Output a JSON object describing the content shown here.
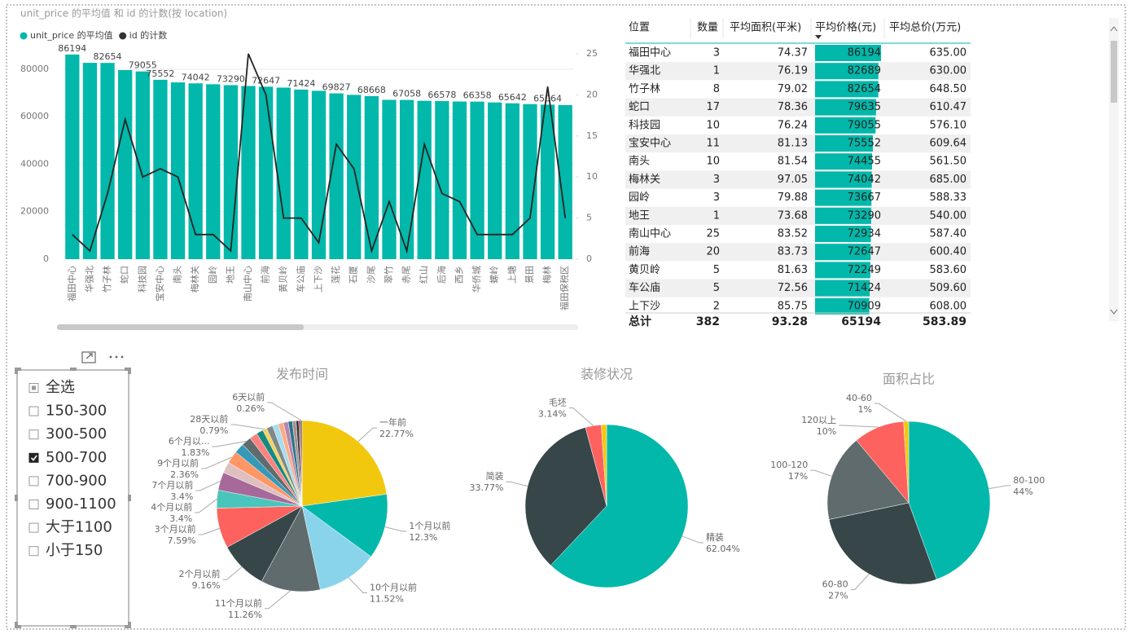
{
  "chart_data": [
    {
      "type": "combo",
      "title": "unit_price 的平均值 和 id 的计数(按 location)",
      "categories": [
        "福田中心",
        "华强北",
        "竹子林",
        "蛇口",
        "科技园",
        "宝安中心",
        "南头",
        "梅林关",
        "园岭",
        "地王",
        "南山中心",
        "前海",
        "黄贝岭",
        "车公庙",
        "上下沙",
        "莲花",
        "石厦",
        "沙尾",
        "翠竹",
        "赤尾",
        "红山",
        "后海",
        "西乡",
        "华侨城",
        "螺岭",
        "上塘",
        "景田",
        "梅林",
        "福田保税区"
      ],
      "series": [
        {
          "name": "unit_price 的平均值",
          "type": "bar",
          "color": "#01B8AA",
          "values": [
            86194,
            82689,
            82654,
            79635,
            79055,
            75552,
            74455,
            74042,
            73667,
            73290,
            72934,
            72647,
            72249,
            71424,
            70909,
            69827,
            69200,
            68668,
            67100,
            67058,
            66700,
            66578,
            66400,
            66358,
            66000,
            65642,
            65300,
            65064,
            64900
          ],
          "value_labels": [
            86194,
            null,
            82654,
            null,
            79055,
            75552,
            null,
            74042,
            null,
            73290,
            null,
            72647,
            null,
            71424,
            null,
            69827,
            null,
            68668,
            null,
            67058,
            null,
            66578,
            null,
            66358,
            null,
            65642,
            null,
            65064,
            null
          ]
        },
        {
          "name": "id 的计数",
          "type": "line",
          "color": "#252423",
          "axis": "y2",
          "values": [
            3,
            1,
            8,
            17,
            10,
            11,
            10,
            3,
            3,
            1,
            25,
            20,
            5,
            5,
            2,
            14,
            11,
            1,
            7,
            1,
            14,
            8,
            7,
            3,
            3,
            3,
            5,
            21,
            5
          ]
        }
      ],
      "ylim": [
        0,
        86500
      ],
      "yticks": [
        0,
        20000,
        40000,
        60000,
        80000
      ],
      "y2lim": [
        0,
        25
      ],
      "y2ticks": [
        0,
        5,
        10,
        15,
        20,
        25
      ],
      "grid": true
    },
    {
      "type": "pie",
      "title": "发布时间",
      "categories": [
        "一年前",
        "1个月以前",
        "10个月以前",
        "11个月以前",
        "2个月以前",
        "3个月以前",
        "4个月以前",
        "7个月以前",
        null,
        "9个月以前",
        null,
        "6个月以...",
        null,
        null,
        "28天以前",
        null,
        null,
        null,
        null,
        null,
        null,
        null,
        null,
        "6天以前"
      ],
      "values": [
        22.77,
        12.3,
        11.52,
        11.26,
        9.16,
        7.59,
        3.4,
        3.4,
        2.1,
        2.36,
        1.9,
        1.83,
        1.5,
        1.3,
        0.79,
        1.2,
        1.1,
        1.0,
        0.9,
        0.8,
        0.7,
        0.5,
        0.36,
        0.26
      ],
      "value_labels": [
        "22.77%",
        "12.3%",
        "11.52%",
        "11.26%",
        "9.16%",
        "7.59%",
        "3.4%",
        "3.4%",
        null,
        "2.36%",
        null,
        "1.83%",
        null,
        null,
        "0.79%",
        null,
        null,
        null,
        null,
        null,
        null,
        null,
        null,
        "0.26%"
      ],
      "colors": [
        "#F2C80F",
        "#01B8AA",
        "#8AD4EB",
        "#5F6B6D",
        "#374649",
        "#FD625E",
        "#4AC5BB",
        "#A66999",
        "#DFBFBF",
        "#FE9666",
        "#3599B8",
        "#5F6B6D",
        "#FB8281",
        "#168980",
        "#F4D25A",
        "#7F898A",
        "#A4DDEE",
        "#FDAB89",
        "#B687AC",
        "#28738A",
        "#A78F8F",
        "#293537",
        "#BB4A4A",
        "#475052"
      ]
    },
    {
      "type": "pie",
      "title": "装修状况",
      "categories": [
        "精装",
        "简装",
        "毛坯",
        null
      ],
      "values": [
        62.04,
        33.77,
        3.14,
        1.05
      ],
      "value_labels": [
        "62.04%",
        "33.77%",
        "3.14%",
        null
      ],
      "colors": [
        "#01B8AA",
        "#374649",
        "#FD625E",
        "#F2C80F"
      ]
    },
    {
      "type": "pie",
      "title": "面积占比",
      "categories": [
        "80-100",
        "60-80",
        "100-120",
        "120以上",
        "40-60"
      ],
      "values": [
        44,
        27,
        17,
        10,
        1
      ],
      "value_labels": [
        "44%",
        "27%",
        "17%",
        "10%",
        "1%"
      ],
      "colors": [
        "#01B8AA",
        "#374649",
        "#5F6B6D",
        "#FD625E",
        "#F2C80F"
      ]
    }
  ],
  "table": {
    "columns": [
      "位置",
      "数量",
      "平均面积(平米)",
      "平均价格(元)",
      "平均总价(万元)"
    ],
    "rows": [
      [
        "福田中心",
        3,
        74.37,
        86194,
        "635.00"
      ],
      [
        "华强北",
        1,
        76.19,
        82689,
        "630.00"
      ],
      [
        "竹子林",
        8,
        79.02,
        82654,
        "648.50"
      ],
      [
        "蛇口",
        17,
        78.36,
        79635,
        "610.47"
      ],
      [
        "科技园",
        10,
        76.24,
        79055,
        "576.10"
      ],
      [
        "宝安中心",
        11,
        81.13,
        75552,
        "609.64"
      ],
      [
        "南头",
        10,
        81.54,
        74455,
        "561.50"
      ],
      [
        "梅林关",
        3,
        97.05,
        74042,
        "685.00"
      ],
      [
        "园岭",
        3,
        79.88,
        73667,
        "588.33"
      ],
      [
        "地王",
        1,
        73.68,
        73290,
        "540.00"
      ],
      [
        "南山中心",
        25,
        83.52,
        72934,
        "587.40"
      ],
      [
        "前海",
        20,
        83.73,
        72647,
        "600.40"
      ],
      [
        "黄贝岭",
        5,
        81.63,
        72249,
        "583.60"
      ],
      [
        "车公庙",
        5,
        72.56,
        71424,
        "509.60"
      ],
      [
        "上下沙",
        2,
        85.75,
        70909,
        "608.00"
      ]
    ],
    "total": [
      "总计",
      382,
      93.28,
      65194,
      583.89
    ]
  },
  "slicer": {
    "items": [
      "全选",
      "150-300",
      "300-500",
      "500-700",
      "700-900",
      "900-1100",
      "大于1100",
      "小于150"
    ],
    "checked": [
      false,
      false,
      false,
      true,
      false,
      false,
      false,
      false
    ]
  }
}
